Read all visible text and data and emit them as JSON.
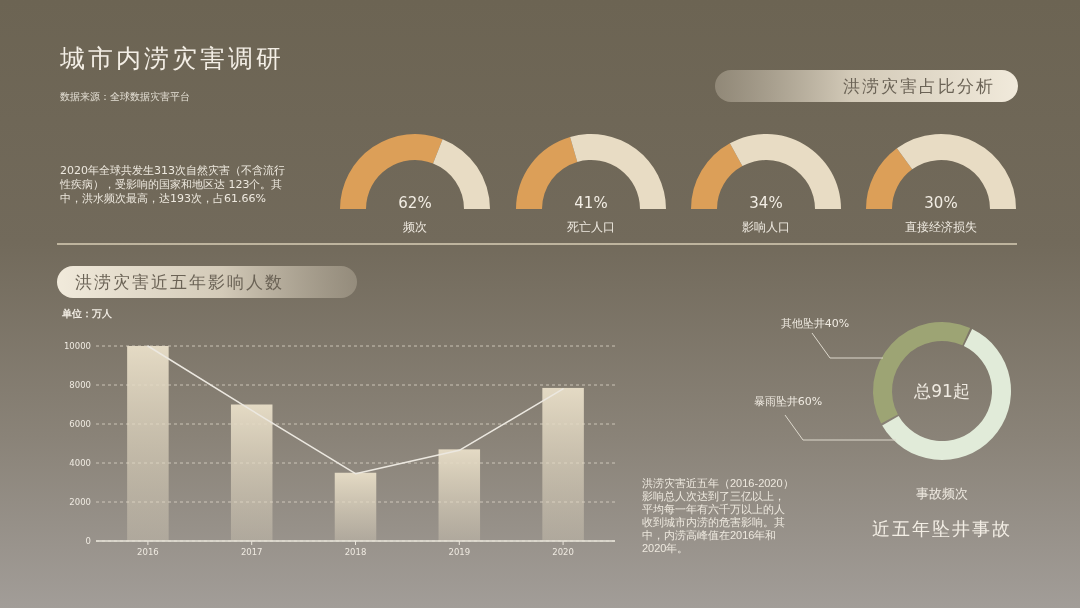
{
  "chart_data": [
    {
      "type": "other",
      "title": "城市内涝灾害调研",
      "subtitle": "数据来源：全球数据灾害平台",
      "annotations": [
        "2020年全球共发生313次自然灾害（不含流行性疾病），受影响的国家和地区达 123个。其中，洪水频次最高，达193次，占61.66%"
      ]
    },
    {
      "type": "other",
      "title": "洪涝灾害占比分析"
    },
    {
      "type": "donut",
      "title": "频次",
      "categories": [
        null,
        null
      ],
      "values": [
        62,
        38
      ],
      "colors": [
        "#dc9f58",
        "#e8dcc4"
      ],
      "annotations": [
        "62%"
      ]
    },
    {
      "type": "donut",
      "title": "死亡人口",
      "categories": [
        null,
        null
      ],
      "values": [
        41,
        59
      ],
      "colors": [
        "#dc9f58",
        "#e8dcc4"
      ],
      "annotations": [
        "41%"
      ]
    },
    {
      "type": "donut",
      "title": "影响人口",
      "categories": [
        null,
        null
      ],
      "values": [
        34,
        66
      ],
      "colors": [
        "#dc9f58",
        "#e8dcc4"
      ],
      "annotations": [
        "34%"
      ]
    },
    {
      "type": "donut",
      "title": "直接经济损失",
      "categories": [
        null,
        null
      ],
      "values": [
        30,
        70
      ],
      "colors": [
        "#dc9f58",
        "#e8dcc4"
      ],
      "annotations": [
        "30%"
      ]
    },
    {
      "type": "bar",
      "title": "洪涝灾害近五年影响人数",
      "ylabel": "单位：万人",
      "categories": [
        "2016",
        "2017",
        "2018",
        "2019",
        "2020"
      ],
      "series": [
        {
          "color": "#e4dac4",
          "values": [
            10000,
            7000,
            3500,
            4700,
            7850
          ]
        },
        {
          "type": "line",
          "color": "#ece8e0",
          "values": [
            10000,
            6700,
            3450,
            4650,
            7800
          ]
        }
      ],
      "ylim": [
        0,
        10000
      ],
      "yticks": [
        0,
        2000,
        4000,
        6000,
        8000,
        10000
      ],
      "grid": "y",
      "annotations": [
        "洪涝灾害近五年（2016-2020）影响总人次达到了三亿以上，平均每一年有六千万以上的人收到城市内涝的危害影响。其中，内涝高峰值在2016年和2020年。"
      ]
    },
    {
      "type": "donut",
      "title": "近五年坠井事故",
      "subtitle": "事故频次",
      "categories": [
        "暴雨坠井",
        "其他坠井"
      ],
      "values": [
        60,
        40
      ],
      "colors": [
        "#e1ebd9",
        "#9da474"
      ],
      "value_labels": [
        "60%",
        "40%"
      ],
      "annotations": [
        "总91起"
      ]
    }
  ]
}
